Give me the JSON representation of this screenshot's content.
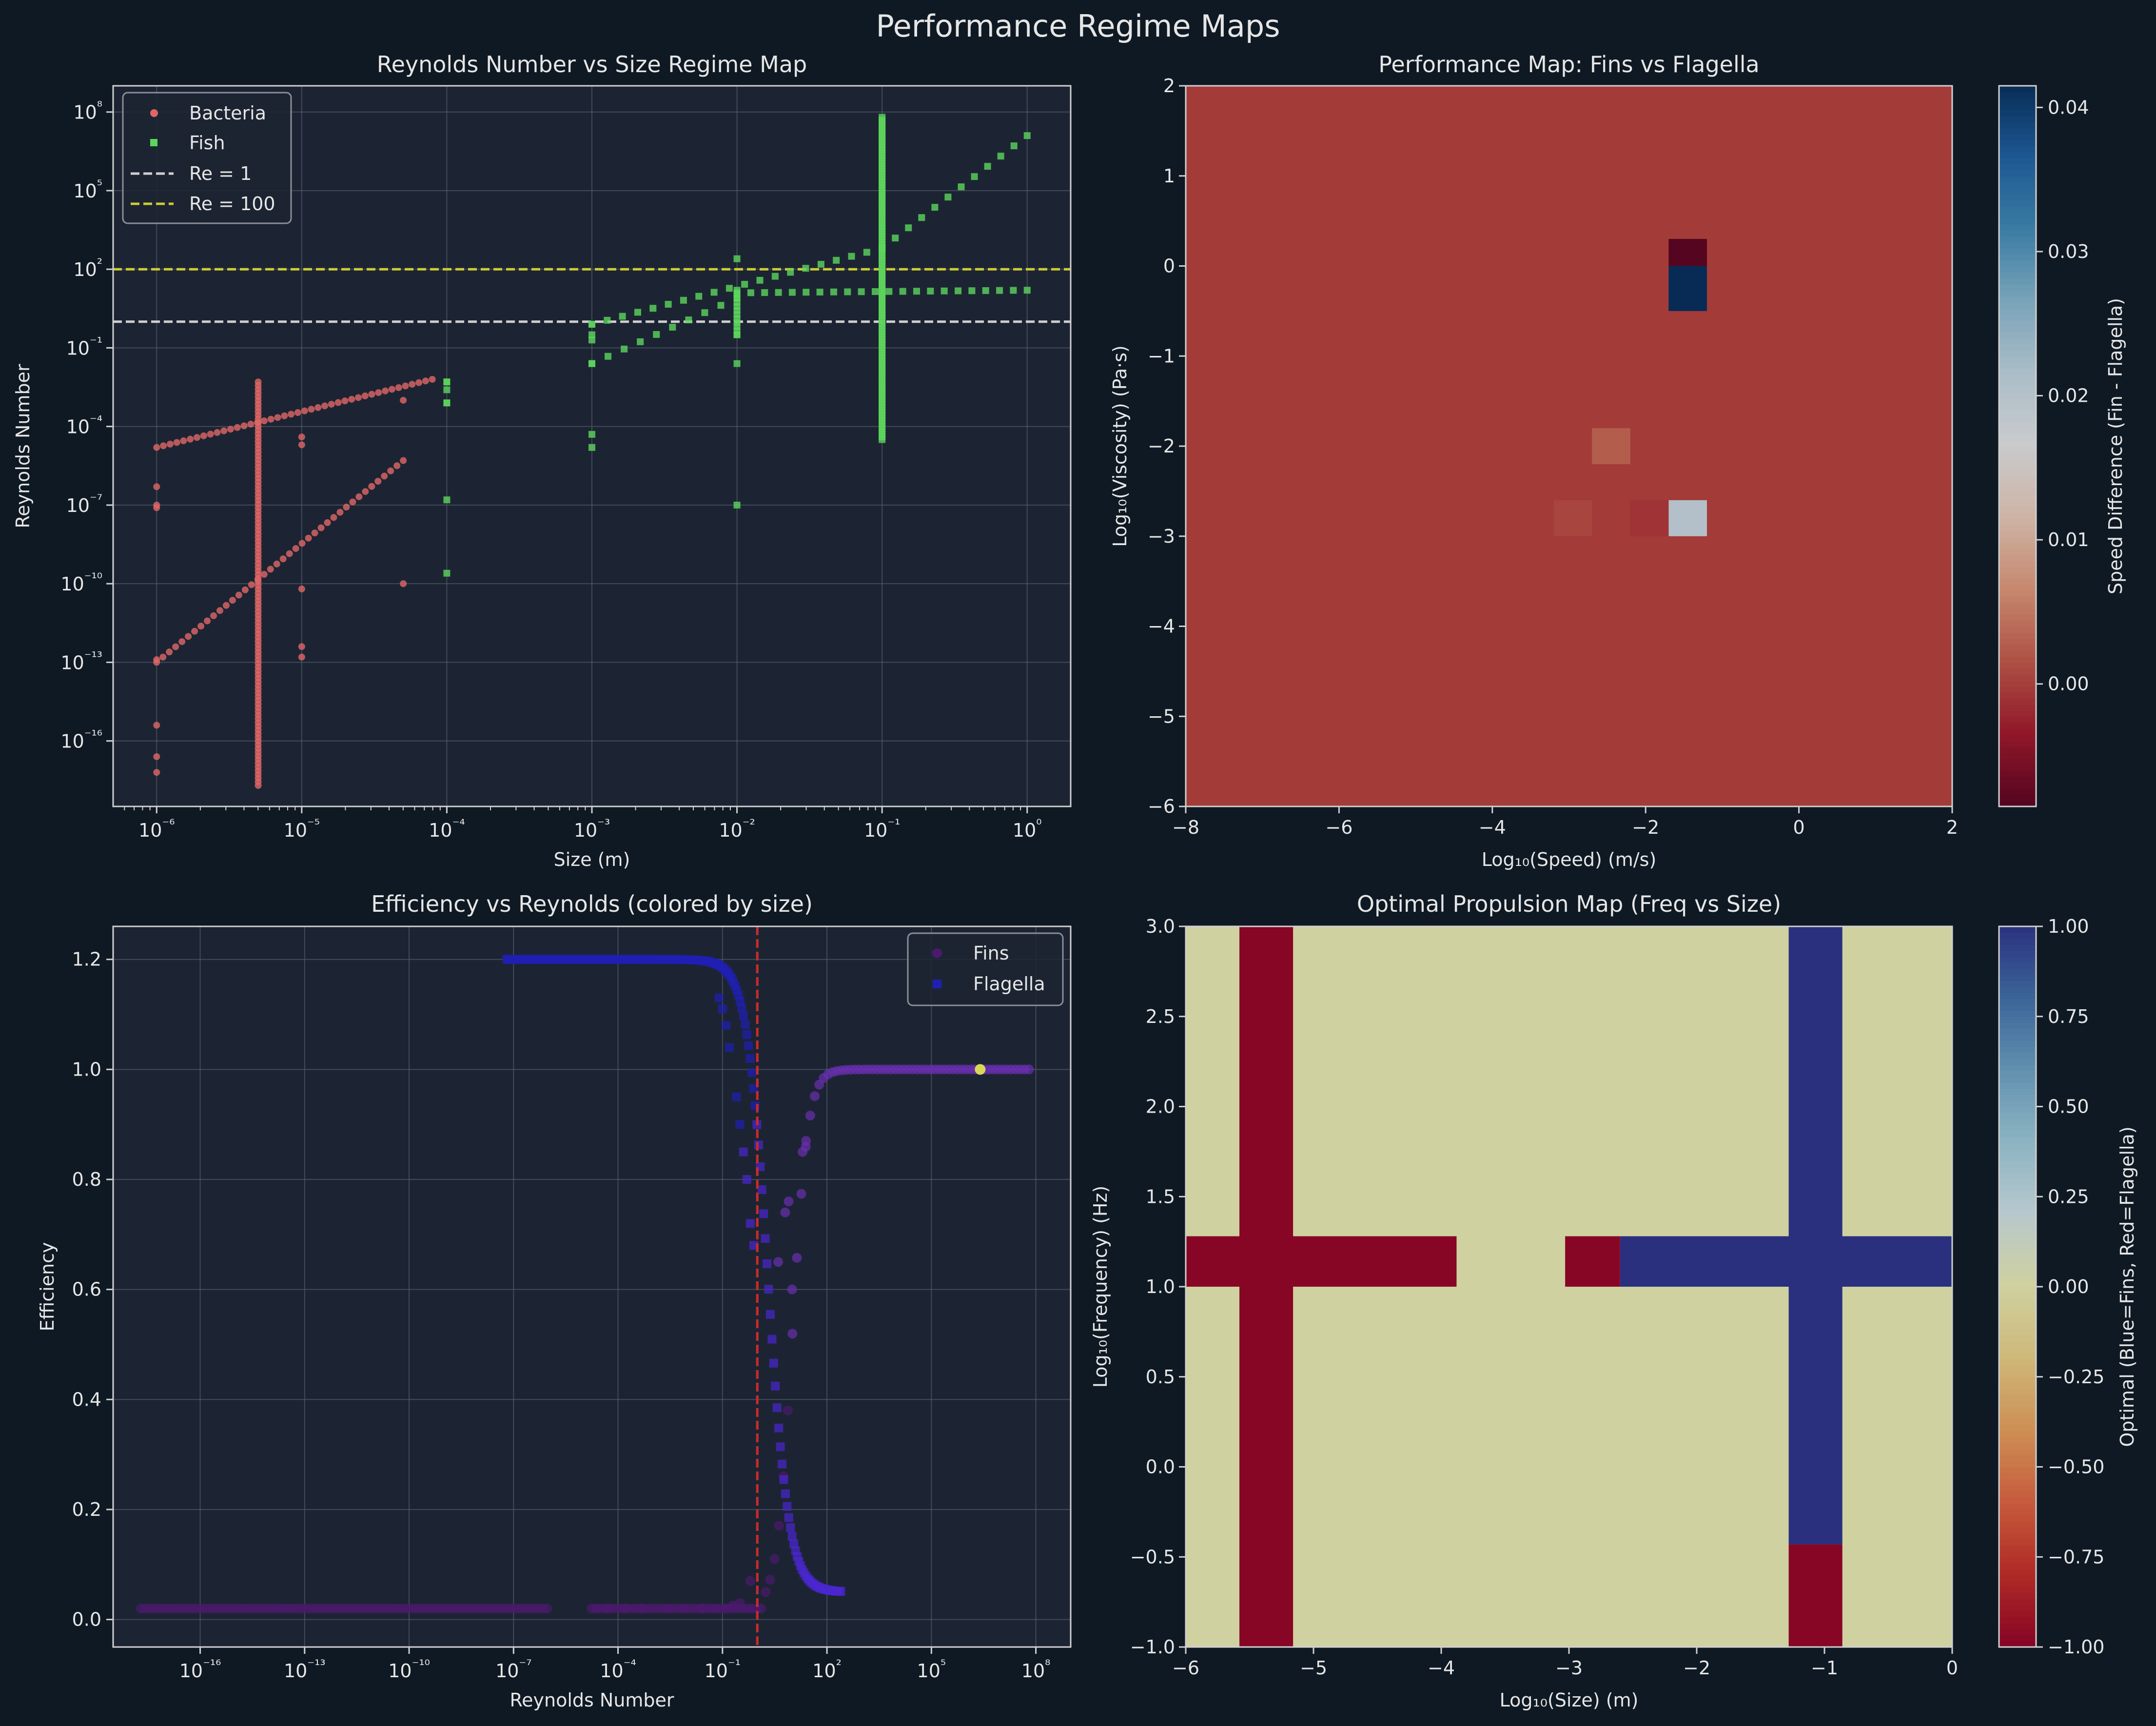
{
  "figure": {
    "title": "Performance Regime Maps"
  },
  "colors": {
    "background": "#0f1923",
    "axes_bg": "#1c2433",
    "grid": "#5b6473",
    "text": "#e6e6e6",
    "bacteria": "#e06666",
    "fish": "#5cd65c",
    "re1": "#cfcfcf",
    "re100": "#cccc33",
    "fins": "#4b1a6e",
    "flagella": "#1f1fb4",
    "cutoff": "#cc2a2a",
    "highlight": "#d7d75a"
  },
  "chart_data": [
    {
      "type": "scatter",
      "title": "Reynolds Number vs Size Regime Map",
      "xlabel": "Size (m)",
      "ylabel": "Reynolds Number",
      "xscale": "log",
      "yscale": "log",
      "xlim_exp": [
        -6.3,
        0.3
      ],
      "ylim_exp": [
        -18.5,
        9
      ],
      "xtick_exponents": [
        -6,
        -5,
        -4,
        -3,
        -2,
        -1,
        0
      ],
      "ytick_exponents": [
        -16,
        -13,
        -10,
        -7,
        -4,
        -1,
        2,
        5,
        8
      ],
      "grid": true,
      "legend": {
        "placement": "top-left",
        "entries": [
          {
            "label": "Bacteria",
            "kind": "marker",
            "color": "#e06666"
          },
          {
            "label": "Fish",
            "kind": "marker-square",
            "color": "#5cd65c"
          },
          {
            "label": "Re = 1",
            "kind": "dashed",
            "color": "#cfcfcf"
          },
          {
            "label": "Re = 100",
            "kind": "dashed",
            "color": "#cccc33"
          }
        ]
      },
      "hlines": [
        {
          "name": "Re = 1",
          "y_exp": 0
        },
        {
          "name": "Re = 100",
          "y_exp": 2
        }
      ],
      "series": [
        {
          "name": "Bacteria",
          "marker": "circle",
          "segments": [
            {
              "x_exp": [
                -6,
                -4.1
              ],
              "y_exp": [
                -4.8,
                -2.2
              ],
              "n": 42
            },
            {
              "x_exp": [
                -6,
                -4.3
              ],
              "y_exp": [
                -13,
                -5.3
              ],
              "n": 40
            }
          ],
          "vertical": [
            {
              "x_exp": -5.3,
              "y_exp_range": [
                -17.7,
                -2.3
              ],
              "n": 110
            }
          ],
          "points": [
            [
              -6,
              -6.3
            ],
            [
              -6,
              -7.0
            ],
            [
              -6,
              -7.1
            ],
            [
              -6,
              -15.4
            ],
            [
              -6,
              -16.6
            ],
            [
              -6,
              -17.2
            ],
            [
              -6,
              -12.9
            ],
            [
              -5,
              -4.4
            ],
            [
              -5,
              -4.7
            ],
            [
              -5,
              -12.4
            ],
            [
              -5,
              -12.8
            ],
            [
              -5,
              -10.2
            ],
            [
              -4.3,
              -3.0
            ],
            [
              -4.3,
              -10.0
            ]
          ]
        },
        {
          "name": "Fish",
          "marker": "square",
          "segments": [
            {
              "x_exp": [
                -3,
                -1
              ],
              "y_exp": [
                -0.1,
                2.8
              ],
              "n": 20
            },
            {
              "x_exp": [
                -1,
                0
              ],
              "y_exp": [
                2.8,
                7.1
              ],
              "n": 12
            },
            {
              "x_exp": [
                -3,
                -2
              ],
              "y_exp": [
                -1.6,
                0.9
              ],
              "n": 10
            },
            {
              "x_exp": [
                -2,
                0
              ],
              "y_exp": [
                1.1,
                1.2
              ],
              "n": 22
            },
            {
              "x_exp": [
                -4,
                -4
              ],
              "y_exp": [
                -2.3,
                -3.1
              ],
              "n": 2
            }
          ],
          "vertical": [
            {
              "x_exp": -1,
              "y_exp_range": [
                -4.5,
                7.8
              ],
              "n": 120
            },
            {
              "x_exp": -2,
              "y_exp_range": [
                -0.5,
                1.2
              ],
              "n": 12
            }
          ],
          "points": [
            [
              -3,
              -0.1
            ],
            [
              -3,
              -0.5
            ],
            [
              -3,
              -0.7
            ],
            [
              -3,
              -1.6
            ],
            [
              -3,
              -4.3
            ],
            [
              -3,
              -4.8
            ],
            [
              -2,
              -0.5
            ],
            [
              -2,
              -1.6
            ],
            [
              -2,
              -7.0
            ],
            [
              -2,
              2.4
            ],
            [
              -4,
              -6.8
            ],
            [
              -4,
              -9.6
            ],
            [
              -4,
              -2.3
            ],
            [
              -4,
              -2.6
            ],
            [
              -4,
              -3.1
            ]
          ]
        }
      ]
    },
    {
      "type": "heatmap",
      "title": "Performance Map: Fins vs Flagella",
      "xlabel": "Log₁₀(Speed) (m/s)",
      "ylabel": "Log₁₀(Viscosity) (Pa·s)",
      "xlim": [
        -8,
        2
      ],
      "ylim": [
        -6,
        2
      ],
      "xticks": [
        -8,
        -6,
        -4,
        -2,
        0,
        2
      ],
      "yticks": [
        -6,
        -5,
        -4,
        -3,
        -2,
        -1,
        0,
        1,
        2
      ],
      "colorbar": {
        "label": "Speed Difference (Fin - Flagella)",
        "range": [
          -0.0085,
          0.0415
        ],
        "ticks": [
          0.0,
          0.01,
          0.02,
          0.03,
          0.04
        ],
        "tick_labels": [
          "0.00",
          "0.01",
          "0.02",
          "0.03",
          "0.04"
        ]
      },
      "base_value": -0.0005,
      "cells": [
        {
          "x": [
            -1.7,
            -1.2
          ],
          "y": [
            0.0,
            0.3
          ],
          "value": -0.0085
        },
        {
          "x": [
            -1.7,
            -1.2
          ],
          "y": [
            -0.5,
            0.0
          ],
          "value": 0.0415
        },
        {
          "x": [
            -2.7,
            -2.2
          ],
          "y": [
            -2.2,
            -1.8
          ],
          "value": 0.0025
        },
        {
          "x": [
            -1.7,
            -1.2
          ],
          "y": [
            -3.0,
            -2.6
          ],
          "value": 0.02
        },
        {
          "x": [
            -3.2,
            -2.7
          ],
          "y": [
            -3.0,
            -2.6
          ],
          "value": 0.0004
        },
        {
          "x": [
            -2.2,
            -1.7
          ],
          "y": [
            -3.0,
            -2.6
          ],
          "value": -0.0012
        }
      ]
    },
    {
      "type": "scatter",
      "title": "Efficiency vs Reynolds (colored by size)",
      "xlabel": "Reynolds Number",
      "ylabel": "Efficiency",
      "xscale": "log",
      "xlim_exp": [
        -18.5,
        9
      ],
      "ylim": [
        -0.05,
        1.26
      ],
      "xtick_exponents": [
        -16,
        -13,
        -10,
        -7,
        -4,
        -1,
        2,
        5,
        8
      ],
      "yticks": [
        0.0,
        0.2,
        0.4,
        0.6,
        0.8,
        1.0,
        1.2
      ],
      "ytick_labels": [
        "0.0",
        "0.2",
        "0.4",
        "0.6",
        "0.8",
        "1.0",
        "1.2"
      ],
      "grid": true,
      "legend": {
        "placement": "top-right",
        "entries": [
          {
            "label": "Fins",
            "kind": "marker",
            "color": "#4b1a6e"
          },
          {
            "label": "Flagella",
            "kind": "marker-square",
            "color": "#1f1fb4"
          }
        ]
      },
      "vline": {
        "x_exp": 0
      },
      "series": [
        {
          "name": "Fins",
          "marker": "circle",
          "curve": {
            "type": "fins",
            "x_exp_range": [
              -17.7,
              7.8
            ],
            "low": 0.02,
            "high": 1.0,
            "mid_exp": 1.0,
            "width": 0.22
          },
          "n": 200,
          "extra_points": [
            [
              -4.6,
              0.02
            ],
            [
              -4.3,
              0.02
            ],
            [
              -3.8,
              0.02
            ],
            [
              -3.3,
              0.02
            ],
            [
              -2.6,
              0.02
            ],
            [
              -2.1,
              0.02
            ],
            [
              -1.6,
              0.02
            ],
            [
              -1.2,
              0.02
            ],
            [
              -0.9,
              0.02
            ],
            [
              -0.7,
              0.025
            ],
            [
              -0.5,
              0.03
            ],
            [
              -0.2,
              0.07
            ],
            [
              0.6,
              0.65
            ],
            [
              0.9,
              0.76
            ],
            [
              0.8,
              0.74
            ],
            [
              1.3,
              0.85
            ],
            [
              1.4,
              0.87
            ],
            [
              1.0,
              0.6
            ]
          ]
        },
        {
          "name": "Flagella",
          "marker": "square",
          "curve": {
            "type": "flagella",
            "x_exp_range": [
              -7.2,
              2.4
            ],
            "high": 1.2,
            "low": 0.05,
            "mid_exp": 0.3,
            "width": 0.3
          },
          "n": 200,
          "extra_points": [
            [
              -1.1,
              1.13
            ],
            [
              -1.0,
              1.11
            ],
            [
              -0.9,
              1.08
            ],
            [
              -0.8,
              1.04
            ],
            [
              -0.6,
              0.95
            ],
            [
              -0.5,
              0.9
            ],
            [
              -0.4,
              0.85
            ],
            [
              -0.3,
              0.8
            ],
            [
              -0.2,
              0.72
            ],
            [
              -0.1,
              0.68
            ]
          ]
        }
      ],
      "highlight_points": [
        [
          6.4,
          1.0
        ]
      ]
    },
    {
      "type": "heatmap",
      "title": "Optimal Propulsion Map (Freq vs Size)",
      "xlabel": "Log₁₀(Size) (m)",
      "ylabel": "Log₁₀(Frequency) (Hz)",
      "xlim": [
        -6,
        0
      ],
      "ylim": [
        -1,
        3
      ],
      "xticks": [
        -6,
        -5,
        -4,
        -3,
        -2,
        -1,
        0
      ],
      "yticks": [
        -1.0,
        -0.5,
        0.0,
        0.5,
        1.0,
        1.5,
        2.0,
        2.5,
        3.0
      ],
      "ytick_labels": [
        "−1.0",
        "−0.5",
        "0.0",
        "0.5",
        "1.0",
        "1.5",
        "2.0",
        "2.5",
        "3.0"
      ],
      "xtick_labels": [
        "−6",
        "−5",
        "−4",
        "−3",
        "−2",
        "−1",
        "0"
      ],
      "colorbar": {
        "label": "Optimal (Blue=Fins, Red=Flagella)",
        "range": [
          -1,
          1
        ],
        "ticks": [
          -1.0,
          -0.75,
          -0.5,
          -0.25,
          0.0,
          0.25,
          0.5,
          0.75,
          1.0
        ],
        "tick_labels": [
          "−1.00",
          "−0.75",
          "−0.50",
          "−0.25",
          "0.00",
          "0.25",
          "0.50",
          "0.75",
          "1.00"
        ]
      },
      "base_value": 0,
      "cells": [
        {
          "x": [
            -5.58,
            -5.16
          ],
          "y": [
            -1,
            3
          ],
          "value": -1
        },
        {
          "x": [
            -6,
            -3.88
          ],
          "y": [
            1.0,
            1.28
          ],
          "value": -1
        },
        {
          "x": [
            -3.03,
            -2.6
          ],
          "y": [
            1.0,
            1.28
          ],
          "value": -1
        },
        {
          "x": [
            -2.6,
            0
          ],
          "y": [
            1.0,
            1.28
          ],
          "value": 1
        },
        {
          "x": [
            -1.28,
            -0.86
          ],
          "y": [
            -0.43,
            3
          ],
          "value": 1
        },
        {
          "x": [
            -1.28,
            -0.86
          ],
          "y": [
            -1,
            -0.43
          ],
          "value": -1
        }
      ]
    }
  ]
}
